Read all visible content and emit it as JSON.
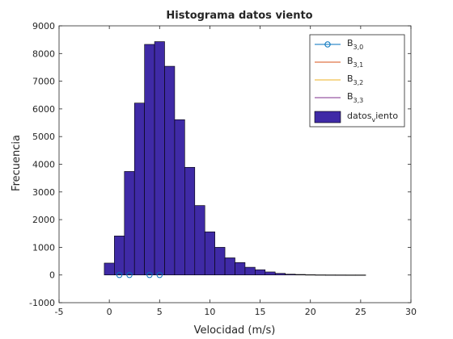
{
  "chart_data": {
    "type": "bar",
    "title": "Histograma datos viento",
    "xlabel": "Velocidad (m/s)",
    "ylabel": "Frecuencia",
    "xlim": [
      -5,
      30
    ],
    "ylim": [
      -1000,
      9000
    ],
    "xticks": [
      -5,
      0,
      5,
      10,
      15,
      20,
      25,
      30
    ],
    "yticks": [
      -1000,
      0,
      1000,
      2000,
      3000,
      4000,
      5000,
      6000,
      7000,
      8000,
      9000
    ],
    "xtick_labels": [
      "-5",
      "0",
      "5",
      "10",
      "15",
      "20",
      "25",
      "30"
    ],
    "ytick_labels": [
      "-1000",
      "0",
      "1000",
      "2000",
      "3000",
      "4000",
      "5000",
      "6000",
      "7000",
      "8000",
      "9000"
    ],
    "grid": false,
    "legend_position": "top-right",
    "histogram": {
      "name": "datos_viento",
      "legend_main": "datos",
      "legend_sub": "v",
      "legend_tail": "iento",
      "color": "#3f2aa6",
      "edge_color": "#000000",
      "bin_edges": [
        -0.5,
        0.5,
        1.5,
        2.5,
        3.5,
        4.5,
        5.5,
        6.5,
        7.5,
        8.5,
        9.5,
        10.5,
        11.5,
        12.5,
        13.5,
        14.5,
        15.5,
        16.5,
        17.5,
        18.5,
        19.5,
        20.5,
        21.5,
        22.5,
        23.5,
        24.5,
        25.5
      ],
      "counts": [
        430,
        1410,
        3740,
        6210,
        8330,
        8430,
        7540,
        5610,
        3890,
        2510,
        1560,
        1000,
        620,
        450,
        280,
        190,
        110,
        60,
        30,
        20,
        10,
        5,
        3,
        2,
        1,
        1
      ]
    },
    "series": [
      {
        "name": "B_{3,0}",
        "legend_main": "B",
        "legend_sub": "3,0",
        "color": "#0072bd",
        "marker": "circle",
        "x": [
          1,
          2,
          4,
          5
        ],
        "y": [
          0,
          0,
          0,
          0
        ]
      },
      {
        "name": "B_{3,1}",
        "legend_main": "B",
        "legend_sub": "3,1",
        "color": "#d95319",
        "marker": "none",
        "x": [],
        "y": []
      },
      {
        "name": "B_{3,2}",
        "legend_main": "B",
        "legend_sub": "3,2",
        "color": "#edb120",
        "marker": "none",
        "x": [],
        "y": []
      },
      {
        "name": "B_{3,3}",
        "legend_main": "B",
        "legend_sub": "3,3",
        "color": "#7e2f8e",
        "marker": "none",
        "x": [],
        "y": []
      }
    ]
  }
}
